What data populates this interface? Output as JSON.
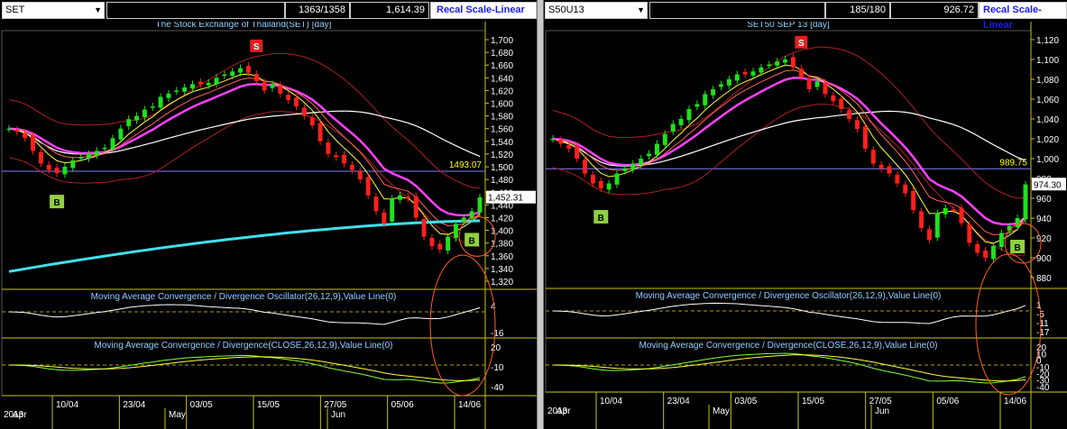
{
  "left": {
    "symbol": "SET",
    "value_a": "1363/1358",
    "value_b": "1,614.39",
    "recal_label": "Recal Scale-Linear",
    "chart_title": "The Stock Exchange of Thailand(SET) [day]",
    "price_ticks": [
      "1,700",
      "1,680",
      "1,660",
      "1,640",
      "1,620",
      "1,600",
      "1,580",
      "1,560",
      "1,540",
      "1,520",
      "1,500",
      "1,480",
      "1,460",
      "1,440",
      "1,420",
      "1,400",
      "1,380",
      "1,360",
      "1,340",
      "1,320"
    ],
    "current_price": "1,452.31",
    "ref_level_label": "1493.07",
    "buy_label": "B",
    "sell_label": "S",
    "osc_title": "Moving Average Convergence / Divergence Oscillator(26,12,9),Value Line(0)",
    "osc_ticks": [
      "4",
      "-16"
    ],
    "macd_title": "Moving Average Convergence / Divergence(CLOSE,26,12,9),Value Line(0)",
    "macd_ticks": [
      "20",
      "-10",
      "-40"
    ],
    "date_ticks": [
      "10/04",
      "23/04",
      "03/05",
      "15/05",
      "27/05",
      "05/06",
      "14/06"
    ],
    "month_labels": [
      "May",
      "Jun"
    ],
    "year_label": "2013",
    "first_month_label": "Apr",
    "chart_data": {
      "type": "candlestick",
      "title": "The Stock Exchange of Thailand(SET) [day]",
      "price_range": [
        1320,
        1700
      ],
      "reference_level": 1493.07,
      "last_close": 1452.31,
      "closes": [
        1560,
        1555,
        1545,
        1525,
        1505,
        1495,
        1490,
        1500,
        1510,
        1515,
        1520,
        1525,
        1530,
        1545,
        1560,
        1575,
        1580,
        1590,
        1595,
        1610,
        1615,
        1620,
        1625,
        1630,
        1630,
        1632,
        1640,
        1645,
        1650,
        1655,
        1648,
        1635,
        1620,
        1630,
        1615,
        1605,
        1595,
        1580,
        1565,
        1540,
        1520,
        1515,
        1505,
        1495,
        1480,
        1455,
        1430,
        1410,
        1450,
        1455,
        1450,
        1420,
        1390,
        1375,
        1370,
        1390,
        1410,
        1420,
        1430,
        1452
      ]
    }
  },
  "right": {
    "symbol": "S50U13",
    "value_a": "185/180",
    "value_b": "926.72",
    "recal_label": "Recal Scale-Linear",
    "chart_title": "SET50 SEP 13  [day]",
    "price_ticks": [
      "1,120",
      "1,100",
      "1,080",
      "1,060",
      "1,040",
      "1,020",
      "1,000",
      "980",
      "960",
      "940",
      "920",
      "900",
      "880"
    ],
    "current_price": "974.30",
    "ref_level_label": "989.75",
    "buy_label": "B",
    "sell_label": "S",
    "osc_title": "Moving Average Convergence / Divergence Oscillator(26,12,9),Value Line(0)",
    "osc_ticks": [
      "1",
      "-5",
      "-11",
      "-17"
    ],
    "macd_title": "Moving Average Convergence / Divergence(CLOSE,26,12,9),Value Line(0)",
    "macd_ticks": [
      "20",
      "10",
      "0",
      "-10",
      "-20",
      "-30",
      "-40"
    ],
    "date_ticks": [
      "10/04",
      "23/04",
      "03/05",
      "15/05",
      "27/05",
      "05/06",
      "14/06"
    ],
    "month_labels": [
      "May",
      "Jun"
    ],
    "year_label": "2013",
    "first_month_label": "Apr",
    "chart_data": {
      "type": "candlestick",
      "title": "SET50 SEP 13  [day]",
      "price_range": [
        880,
        1120
      ],
      "reference_level": 989.75,
      "last_close": 974.3,
      "closes": [
        1020,
        1015,
        1010,
        1000,
        985,
        975,
        970,
        975,
        985,
        990,
        995,
        1000,
        1005,
        1015,
        1025,
        1035,
        1040,
        1050,
        1055,
        1065,
        1070,
        1075,
        1080,
        1085,
        1085,
        1088,
        1092,
        1095,
        1098,
        1100,
        1092,
        1082,
        1070,
        1078,
        1065,
        1058,
        1050,
        1040,
        1030,
        1010,
        995,
        990,
        985,
        975,
        965,
        948,
        930,
        918,
        945,
        950,
        948,
        935,
        915,
        905,
        900,
        912,
        925,
        932,
        940,
        974
      ]
    }
  }
}
